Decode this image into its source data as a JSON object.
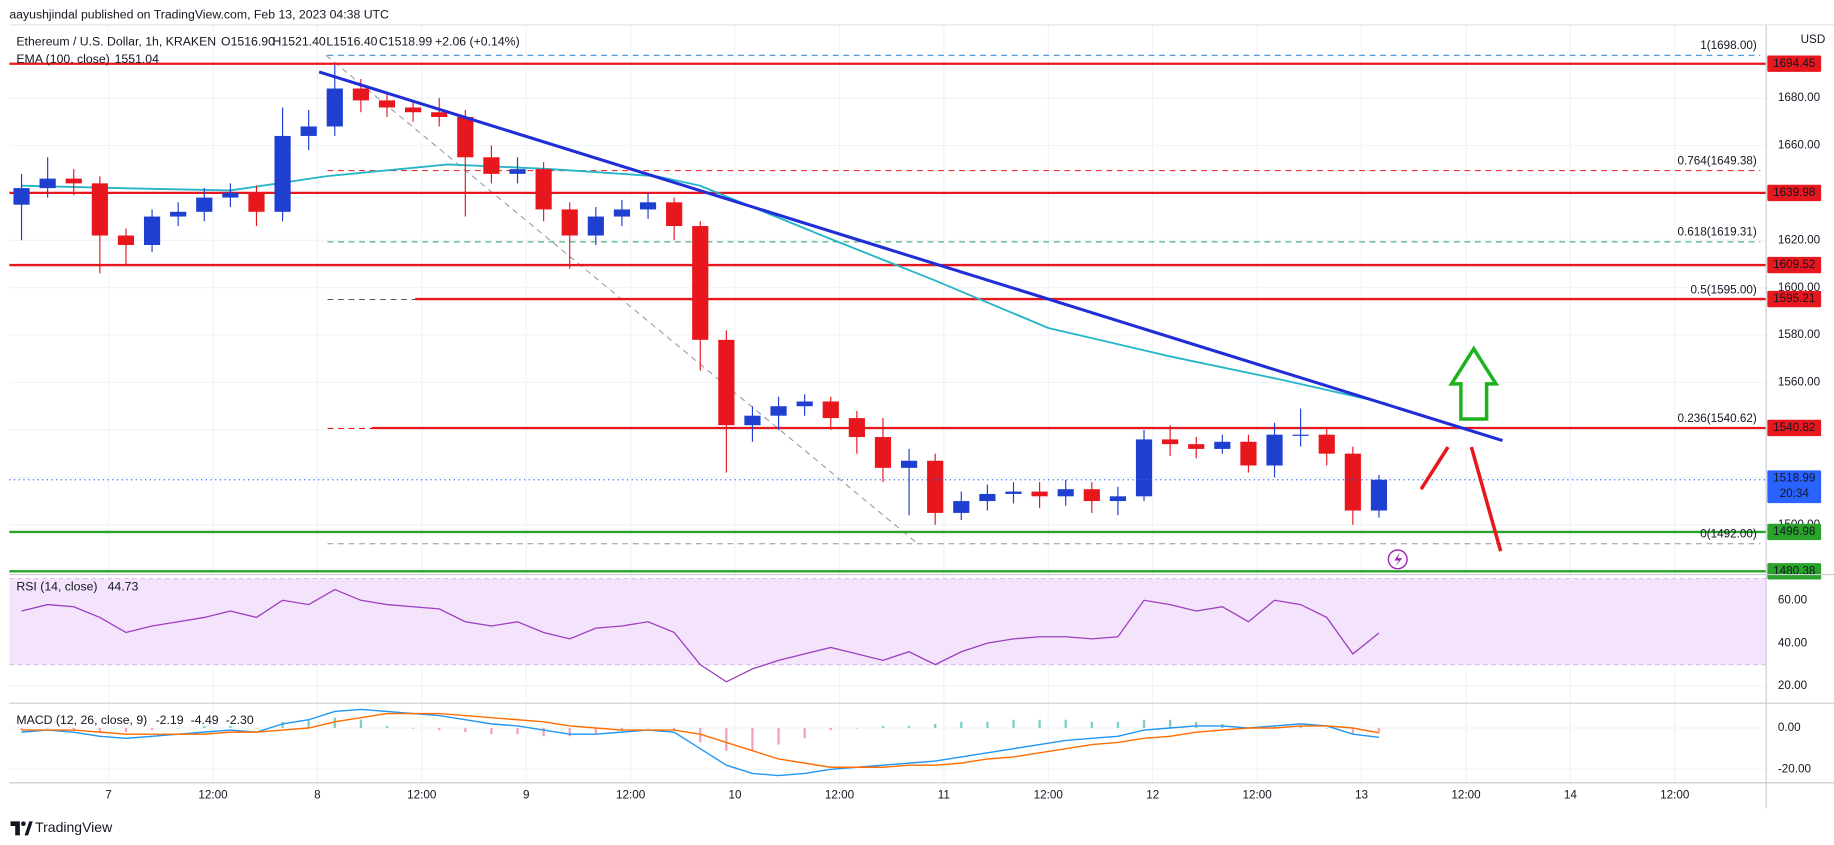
{
  "header": "aayushjindal published on TradingView.com, Feb 13, 2023 04:38 UTC",
  "footer": "TradingView",
  "chart_data": {
    "type": "candlestick",
    "title": "Ethereum / U.S. Dollar, 1h, KRAKEN",
    "ohlc_labels": [
      "O1516.90",
      "H1521.40",
      "L1516.40",
      "C1518.99"
    ],
    "change": "+2.06 (+0.14%)",
    "currency": "USD",
    "up_color": "#1e3fd0",
    "down_color": "#e8171e",
    "x": [
      -10,
      -7,
      -4,
      -1,
      2,
      5,
      8,
      11,
      14,
      17,
      20,
      23,
      26,
      29,
      32,
      35,
      38,
      41,
      44,
      47,
      50,
      53,
      56,
      59,
      62,
      65,
      68,
      71,
      74,
      77,
      80,
      83,
      86,
      89,
      92,
      95,
      98,
      101,
      104,
      107,
      110,
      113,
      116,
      119,
      122,
      125,
      128,
      131,
      134,
      137,
      140,
      143,
      146
    ],
    "open": [
      1635,
      1642,
      1646,
      1644,
      1622,
      1618,
      1630,
      1632,
      1638,
      1640,
      1632,
      1664,
      1668,
      1684,
      1679,
      1676,
      1674,
      1672,
      1655,
      1648,
      1650,
      1633,
      1622,
      1630,
      1633,
      1636,
      1626,
      1578,
      1542,
      1546,
      1550,
      1552,
      1545,
      1537,
      1524,
      1527,
      1505,
      1510,
      1513,
      1514,
      1512,
      1515,
      1510,
      1512,
      1536,
      1534,
      1532,
      1535,
      1525,
      1538,
      1538,
      1530,
      1506
    ],
    "high": [
      1648,
      1655,
      1650,
      1647,
      1625,
      1633,
      1636,
      1642,
      1644,
      1643,
      1676,
      1675,
      1694,
      1688,
      1682,
      1679,
      1680,
      1675,
      1660,
      1655,
      1653,
      1636,
      1634,
      1637,
      1640,
      1638,
      1628,
      1582,
      1550,
      1554,
      1555,
      1554,
      1548,
      1545,
      1532,
      1530,
      1514,
      1517,
      1518,
      1518,
      1519,
      1518,
      1516,
      1540,
      1542,
      1537,
      1538,
      1538,
      1543,
      1549,
      1541,
      1533,
      1521
    ],
    "low": [
      1620,
      1638,
      1639,
      1606,
      1610,
      1615,
      1626,
      1628,
      1634,
      1626,
      1628,
      1658,
      1664,
      1674,
      1672,
      1670,
      1668,
      1630,
      1644,
      1644,
      1628,
      1608,
      1618,
      1626,
      1629,
      1620,
      1565,
      1522,
      1535,
      1540,
      1546,
      1540,
      1530,
      1518,
      1504,
      1500,
      1502,
      1506,
      1509,
      1507,
      1508,
      1505,
      1504,
      1510,
      1529,
      1528,
      1530,
      1522,
      1520,
      1533,
      1525,
      1500,
      1503
    ],
    "close": [
      1642,
      1646,
      1644,
      1622,
      1618,
      1630,
      1632,
      1638,
      1640,
      1632,
      1664,
      1668,
      1684,
      1679,
      1676,
      1674,
      1672,
      1655,
      1648,
      1650,
      1633,
      1622,
      1630,
      1633,
      1636,
      1626,
      1578,
      1542,
      1546,
      1550,
      1552,
      1545,
      1537,
      1524,
      1527,
      1505,
      1510,
      1513,
      1514,
      1512,
      1515,
      1510,
      1512,
      1536,
      1534,
      1532,
      1535,
      1525,
      1538,
      1538,
      1530,
      1506,
      1519
    ],
    "xlim": [
      -11.4,
      190.5
    ],
    "xticks": [
      {
        "value": 0,
        "label": "7"
      },
      {
        "value": 12,
        "label": "12:00"
      },
      {
        "value": 24,
        "label": "8"
      },
      {
        "value": 36,
        "label": "12:00"
      },
      {
        "value": 48,
        "label": "9"
      },
      {
        "value": 60,
        "label": "12:00"
      },
      {
        "value": 72,
        "label": "10"
      },
      {
        "value": 84,
        "label": "12:00"
      },
      {
        "value": 96,
        "label": "11"
      },
      {
        "value": 108,
        "label": "12:00"
      },
      {
        "value": 120,
        "label": "12"
      },
      {
        "value": 132,
        "label": "12:00"
      },
      {
        "value": 144,
        "label": "13"
      },
      {
        "value": 156,
        "label": "12:00"
      },
      {
        "value": 168,
        "label": "14"
      },
      {
        "value": 180,
        "label": "12:00"
      }
    ],
    "ylim": [
      1479,
      1701
    ],
    "yticks": [
      {
        "value": 1500,
        "label": "1500.00"
      },
      {
        "value": 1520,
        "label": "1520.00"
      },
      {
        "value": 1540,
        "label": "1540.00"
      },
      {
        "value": 1560,
        "label": "1560.00"
      },
      {
        "value": 1580,
        "label": "1580.00"
      },
      {
        "value": 1600,
        "label": "1600.00"
      },
      {
        "value": 1620,
        "label": "1620.00"
      },
      {
        "value": 1640,
        "label": "1640.00"
      },
      {
        "value": 1660,
        "label": "1660.00"
      },
      {
        "value": 1680,
        "label": "1680.00"
      }
    ],
    "grid": true,
    "ema": {
      "name": "EMA (100, close)",
      "last": "1551.04",
      "color": "#26b5c9",
      "x": [
        -10,
        1,
        14,
        25,
        39,
        51,
        63,
        68,
        82,
        95,
        108,
        122,
        135,
        147
      ],
      "values": [
        1643,
        1642,
        1641,
        1647,
        1652,
        1650,
        1647,
        1643,
        1622,
        1603,
        1583,
        1571,
        1561,
        1551.04
      ]
    },
    "trendline": {
      "color": "#1f2ed6",
      "x": [
        24.2,
        160.2
      ],
      "values": [
        1691,
        1535.5
      ]
    },
    "fib_diagonal": {
      "color": "#9598a1",
      "x": [
        25,
        93
      ],
      "values": [
        1698,
        1492
      ]
    },
    "levels": [
      {
        "value": 1694.45,
        "color": "#e8171e"
      },
      {
        "value": 1639.98,
        "color": "#e8171e"
      },
      {
        "value": 1609.52,
        "color": "#e8171e"
      },
      {
        "value": 1595.21,
        "color": "#e8171e"
      },
      {
        "value": 1540.82,
        "color": "#e8171e"
      },
      {
        "value": 1496.98,
        "color": "#2aa32a"
      },
      {
        "value": 1480.38,
        "color": "#2aa32a"
      }
    ],
    "fib": [
      {
        "value": 1698,
        "label": "1(1698.00)",
        "color": "#3f8fd8"
      },
      {
        "value": 1649.38,
        "label": "0.764(1649.38)",
        "color": "#e8171e"
      },
      {
        "value": 1619.31,
        "label": "0.618(1619.31)",
        "color": "#22a35a"
      },
      {
        "value": 1595,
        "label": "0.5(1595.00)",
        "color": "#555a66"
      },
      {
        "value": 1540.62,
        "label": "0.236(1540.62)",
        "color": "#e8171e"
      },
      {
        "value": 1492,
        "label": "0(1492.00)",
        "color": "#9598a1"
      }
    ],
    "last_price": {
      "value": 1518.99,
      "countdown": "20:34",
      "color": "#2962ff"
    },
    "rsi": {
      "name": "RSI (14, close)",
      "last": "44.73",
      "color": "#9c3fc0",
      "band": [
        30,
        70
      ],
      "ylim": [
        12,
        72
      ],
      "yticks": [
        {
          "value": 20,
          "label": "20.00"
        },
        {
          "value": 40,
          "label": "40.00"
        },
        {
          "value": 60,
          "label": "60.00"
        }
      ],
      "values": [
        55,
        58,
        57,
        52,
        45,
        48,
        50,
        52,
        55,
        52,
        60,
        58,
        65,
        60,
        58,
        57,
        56,
        50,
        48,
        50,
        45,
        42,
        47,
        48,
        50,
        45,
        30,
        22,
        28,
        32,
        35,
        38,
        35,
        32,
        36,
        30,
        36,
        40,
        42,
        43,
        43,
        42,
        43,
        60,
        58,
        55,
        57,
        50,
        60,
        58,
        52,
        35,
        44.73
      ]
    },
    "macd": {
      "name": "MACD (12, 26, close, 9)",
      "legend": [
        "-2.19",
        "-4.49",
        "-2.30"
      ],
      "macd_color": "#2196f3",
      "signal_color": "#ff6d00",
      "ylim": [
        -26.5,
        12
      ],
      "yticks": [
        {
          "value": -20,
          "label": "-20.00"
        },
        {
          "value": 0,
          "label": "0.00"
        }
      ],
      "macd": [
        -2,
        -1,
        -2,
        -4,
        -5,
        -4,
        -3,
        -2,
        -1,
        -2,
        2,
        4,
        8,
        9,
        8,
        7,
        6,
        4,
        2,
        1,
        -1,
        -3,
        -3,
        -2,
        -1,
        -2,
        -10,
        -18,
        -22,
        -23,
        -22,
        -20,
        -19,
        -18,
        -17,
        -16,
        -14,
        -12,
        -10,
        -8,
        -6,
        -5,
        -4,
        -1,
        0,
        1,
        1,
        0,
        1,
        2,
        1,
        -3,
        -4.49
      ],
      "signal": [
        -1,
        -1,
        -1,
        -2,
        -3,
        -3,
        -3,
        -3,
        -2,
        -2,
        -1,
        0,
        3,
        5,
        7,
        7,
        7,
        6,
        5,
        4,
        3,
        1,
        0,
        -1,
        -1,
        -1,
        -3,
        -7,
        -11,
        -15,
        -17,
        -19,
        -19,
        -19,
        -18,
        -18,
        -17,
        -15,
        -14,
        -12,
        -10,
        -8,
        -7,
        -5,
        -4,
        -2,
        -1,
        0,
        0,
        1,
        1,
        0,
        -2.3
      ],
      "histogram": [
        -1,
        0,
        -1,
        -2,
        -2,
        -1,
        0,
        1,
        1,
        0,
        3,
        4,
        5,
        4,
        1,
        0,
        -1,
        -2,
        -3,
        -3,
        -4,
        -4,
        -3,
        -1,
        0,
        -1,
        -7,
        -11,
        -11,
        -8,
        -5,
        -1,
        0,
        1,
        1,
        2,
        3,
        3,
        4,
        4,
        4,
        3,
        3,
        4,
        4,
        3,
        2,
        0,
        1,
        1,
        0,
        -3,
        -2.19
      ]
    }
  }
}
